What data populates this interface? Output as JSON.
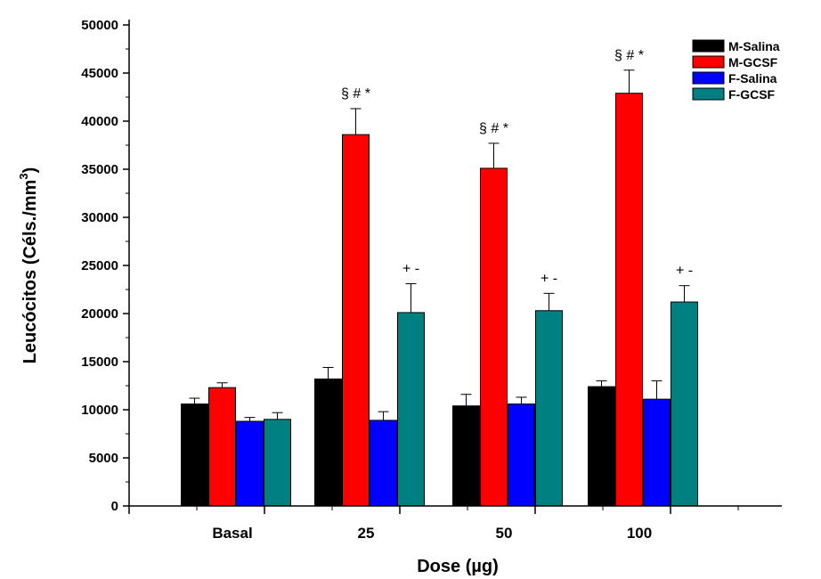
{
  "chart_data": {
    "type": "bar",
    "xlabel": "Dose (µg)",
    "ylabel": "Leucócitos (Céls./mm³)",
    "ylabel_main": "Leucócitos (Céls./mm",
    "ylabel_sup": "3",
    "ylabel_end": ")",
    "ylim": [
      0,
      50000
    ],
    "yticks": [
      0,
      5000,
      10000,
      15000,
      20000,
      25000,
      30000,
      35000,
      40000,
      45000,
      50000
    ],
    "categories": [
      "Basal",
      "25",
      "50",
      "100"
    ],
    "legend_position": "top-right",
    "grid": false,
    "series": [
      {
        "name": "M-Salina",
        "color": "#000000",
        "values": [
          10600,
          13200,
          10400,
          12400
        ],
        "errors": [
          600,
          1200,
          1200,
          600
        ],
        "annotations": [
          "",
          "",
          "",
          ""
        ]
      },
      {
        "name": "M-GCSF",
        "color": "#ff0000",
        "values": [
          12300,
          38600,
          35100,
          42900
        ],
        "errors": [
          500,
          2700,
          2600,
          2400
        ],
        "annotations": [
          "",
          "§ # *",
          "§ # *",
          "§ # *"
        ]
      },
      {
        "name": "F-Salina",
        "color": "#0000ff",
        "values": [
          8800,
          8900,
          10600,
          11100
        ],
        "errors": [
          400,
          900,
          700,
          1900
        ],
        "annotations": [
          "",
          "",
          "",
          ""
        ]
      },
      {
        "name": "F-GCSF",
        "color": "#008080",
        "values": [
          9000,
          20100,
          20300,
          21200
        ],
        "errors": [
          700,
          3000,
          1800,
          1700
        ],
        "annotations": [
          "",
          "+ -",
          "+ -",
          "+ -"
        ]
      }
    ]
  }
}
